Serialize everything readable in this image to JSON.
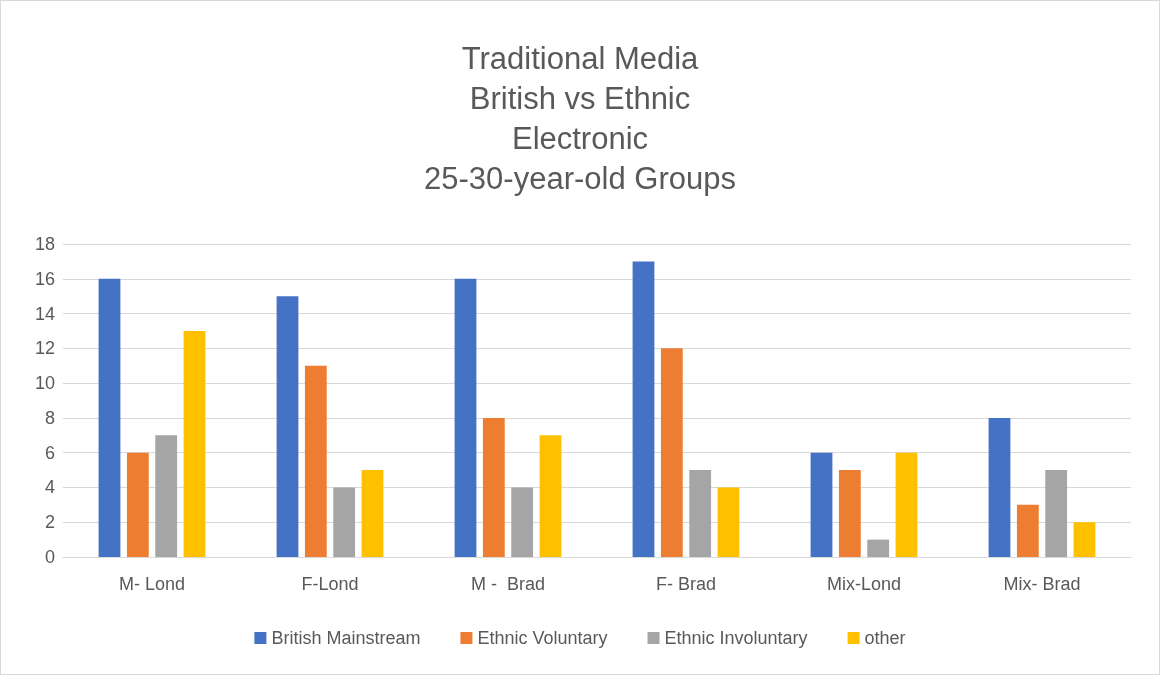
{
  "chart_data": {
    "type": "bar",
    "title": "Traditional Media\nBritish vs Ethnic\nElectronic\n25-30-year-old Groups",
    "categories": [
      "M- Lond",
      "F-Lond",
      "M -  Brad",
      "F- Brad",
      "Mix-Lond",
      "Mix- Brad"
    ],
    "series": [
      {
        "name": "British Mainstream",
        "color": "#4472c4",
        "values": [
          16,
          15,
          16,
          17,
          6,
          8
        ]
      },
      {
        "name": "Ethnic Voluntary",
        "color": "#ed7d31",
        "values": [
          6,
          11,
          8,
          12,
          5,
          3
        ]
      },
      {
        "name": "Ethnic Involuntary",
        "color": "#a5a5a5",
        "values": [
          7,
          4,
          4,
          5,
          1,
          5
        ]
      },
      {
        "name": "other",
        "color": "#ffc000",
        "values": [
          13,
          5,
          7,
          4,
          6,
          2
        ]
      }
    ],
    "ylim": [
      0,
      18
    ],
    "yticks": [
      0,
      2,
      4,
      6,
      8,
      10,
      12,
      14,
      16,
      18
    ],
    "grid": "y",
    "legend": "bottom"
  }
}
